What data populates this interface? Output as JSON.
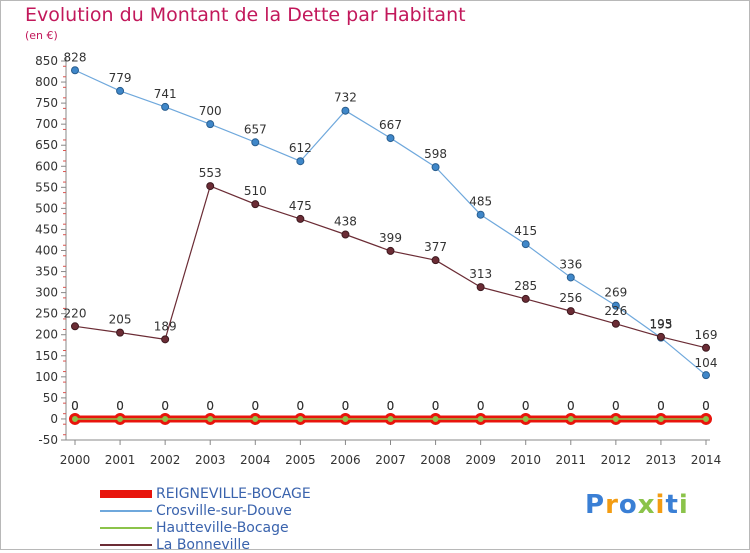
{
  "title": "Evolution du Montant de la Dette par Habitant",
  "subtitle": "(en €)",
  "logo": {
    "text": "Proxiti",
    "letters": [
      "P",
      "r",
      "o",
      "x",
      "i",
      "t",
      "i"
    ],
    "colors": [
      "#3a7fd5",
      "#f39c12",
      "#3a7fd5",
      "#8bc34a",
      "#f39c12",
      "#3a7fd5",
      "#8bc34a"
    ]
  },
  "chart_data": {
    "type": "line",
    "title": "Evolution du Montant de la Dette par Habitant",
    "ylabel": "(en €)",
    "xlabel": "",
    "x": [
      "2000",
      "2001",
      "2002",
      "2003",
      "2004",
      "2005",
      "2006",
      "2007",
      "2008",
      "2009",
      "2010",
      "2011",
      "2012",
      "2013",
      "2014"
    ],
    "ylim": [
      -50,
      850
    ],
    "yticks": [
      -50,
      0,
      50,
      100,
      150,
      200,
      250,
      300,
      350,
      400,
      450,
      500,
      550,
      600,
      650,
      700,
      750,
      800,
      850
    ],
    "grid": false,
    "legend_position": "bottom-left",
    "series": [
      {
        "name": "REIGNEVILLE-BOCAGE",
        "color": "#e8150c",
        "values": [
          0,
          0,
          0,
          0,
          0,
          0,
          0,
          0,
          0,
          0,
          0,
          0,
          0,
          0,
          0
        ],
        "labels": [
          "0",
          "0",
          "0",
          "0",
          "0",
          "0",
          "0",
          "0",
          "0",
          "0",
          "0",
          "0",
          "0",
          "0",
          "0"
        ]
      },
      {
        "name": "Crosville-sur-Douve",
        "color": "#6fa8dc",
        "values": [
          828,
          779,
          741,
          700,
          657,
          612,
          732,
          667,
          598,
          485,
          415,
          336,
          269,
          193,
          104
        ],
        "labels": [
          "828",
          "779",
          "741",
          "700",
          "657",
          "612",
          "732",
          "667",
          "598",
          "485",
          "415",
          "336",
          "269",
          "193",
          "104"
        ]
      },
      {
        "name": "Hautteville-Bocage",
        "color": "#8bc34a",
        "values": [
          0,
          0,
          0,
          0,
          0,
          0,
          0,
          0,
          0,
          0,
          0,
          0,
          0,
          0,
          0
        ],
        "labels": [
          "0",
          "0",
          "0",
          "0",
          "0",
          "0",
          "0",
          "0",
          "0",
          "0",
          "0",
          "0",
          "0",
          "0",
          "0"
        ]
      },
      {
        "name": "La Bonneville",
        "color": "#6b2c35",
        "values": [
          220,
          205,
          189,
          553,
          510,
          475,
          438,
          399,
          377,
          313,
          285,
          256,
          226,
          195,
          169
        ],
        "labels": [
          "220",
          "205",
          "189",
          "553",
          "510",
          "475",
          "438",
          "399",
          "377",
          "313",
          "285",
          "256",
          "226",
          "195",
          "169"
        ]
      }
    ]
  }
}
